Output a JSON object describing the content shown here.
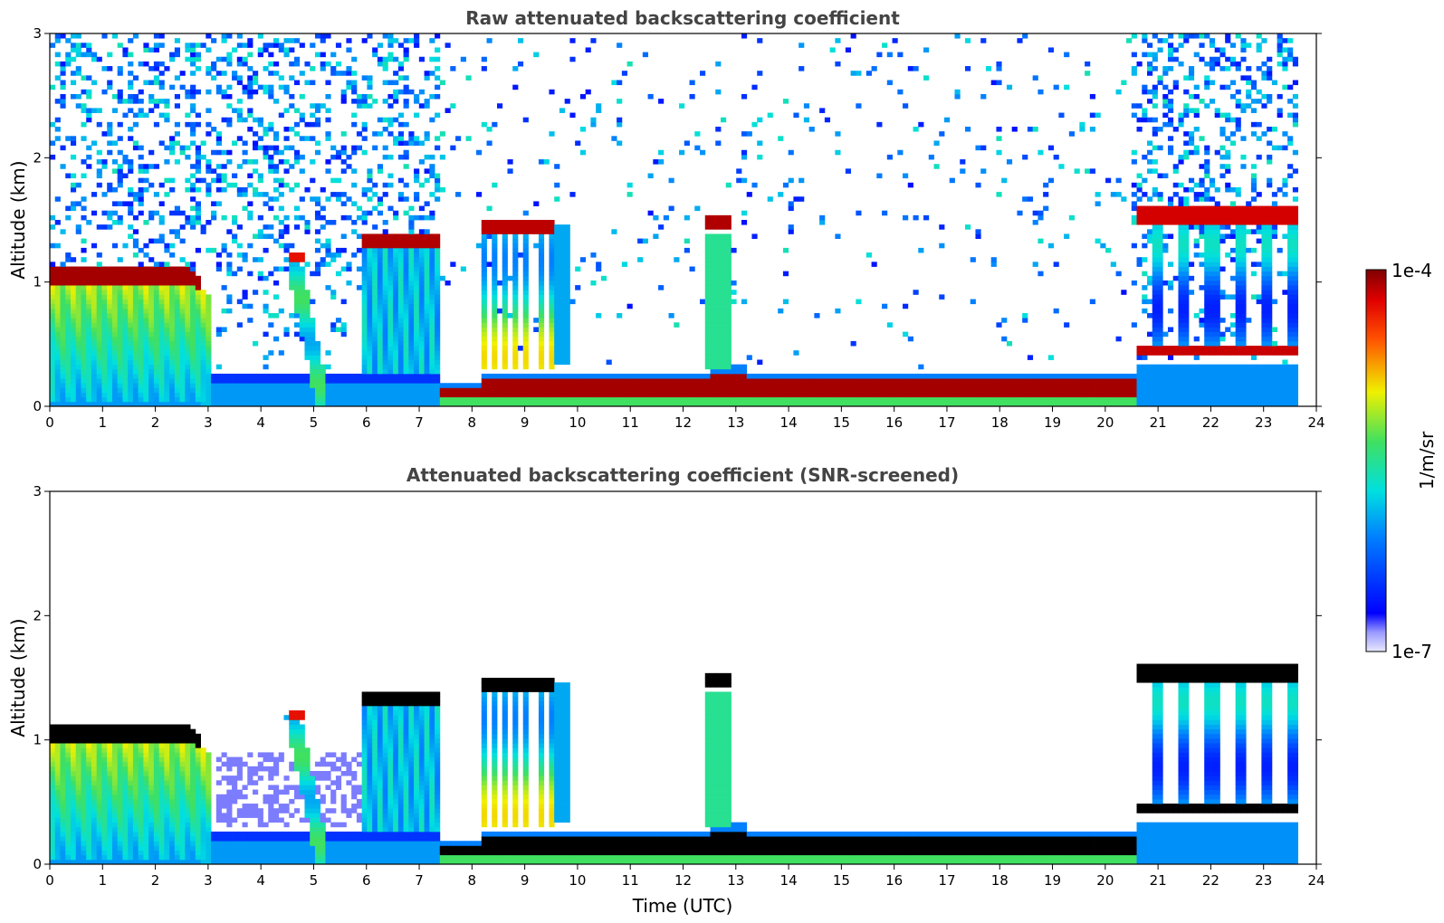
{
  "chart_data": [
    {
      "type": "heatmap",
      "title": "Raw attenuated backscattering coefficient",
      "xlabel": "",
      "ylabel": "Altitude (km)",
      "xlim": [
        0,
        24
      ],
      "ylim": [
        0,
        3
      ],
      "xticks": [
        0,
        1,
        2,
        3,
        4,
        5,
        6,
        7,
        8,
        9,
        10,
        11,
        12,
        13,
        14,
        15,
        16,
        17,
        18,
        19,
        20,
        21,
        22,
        23,
        24
      ],
      "yticks": [
        0,
        1,
        2,
        3
      ],
      "data_end_time": 23.65,
      "noise_level": "high",
      "cloud_top_mark": "dark-red",
      "layers": [
        {
          "name": "boundary layer cloud",
          "t_start": 0.0,
          "t_end": 2.85,
          "top_km": 1.05
        },
        {
          "name": "cloud patch",
          "t_start": 4.5,
          "t_end": 4.8,
          "top_km": 1.2
        },
        {
          "name": "cloud deck",
          "t_start": 5.9,
          "t_end": 7.3,
          "top_km": 1.33
        },
        {
          "name": "low stratus",
          "t_start": 7.4,
          "t_end": 20.6,
          "top_km": 0.22
        },
        {
          "name": "cloud",
          "t_start": 8.2,
          "t_end": 9.6,
          "top_km": 1.45
        },
        {
          "name": "cloud",
          "t_start": 12.4,
          "t_end": 12.9,
          "top_km": 1.5
        },
        {
          "name": "upper cloud",
          "t_start": 20.6,
          "t_end": 23.65,
          "top_km": 1.55
        },
        {
          "name": "lower cloud",
          "t_start": 20.6,
          "t_end": 23.65,
          "top_km": 0.45
        }
      ]
    },
    {
      "type": "heatmap",
      "title": "Attenuated backscattering coefficient (SNR-screened)",
      "xlabel": "Time (UTC)",
      "ylabel": "Altitude (km)",
      "xlim": [
        0,
        24
      ],
      "ylim": [
        0,
        3
      ],
      "xticks": [
        0,
        1,
        2,
        3,
        4,
        5,
        6,
        7,
        8,
        9,
        10,
        11,
        12,
        13,
        14,
        15,
        16,
        17,
        18,
        19,
        20,
        21,
        22,
        23,
        24
      ],
      "yticks": [
        0,
        1,
        2,
        3
      ],
      "data_end_time": 23.65,
      "noise_level": "screened",
      "cloud_top_mark": "black"
    }
  ],
  "colorbar": {
    "label": "1/m/sr",
    "max_label": "1e-4",
    "min_label": "1e-7",
    "scale": "log",
    "range": [
      1e-07,
      0.0001
    ],
    "colormap": "jet"
  }
}
